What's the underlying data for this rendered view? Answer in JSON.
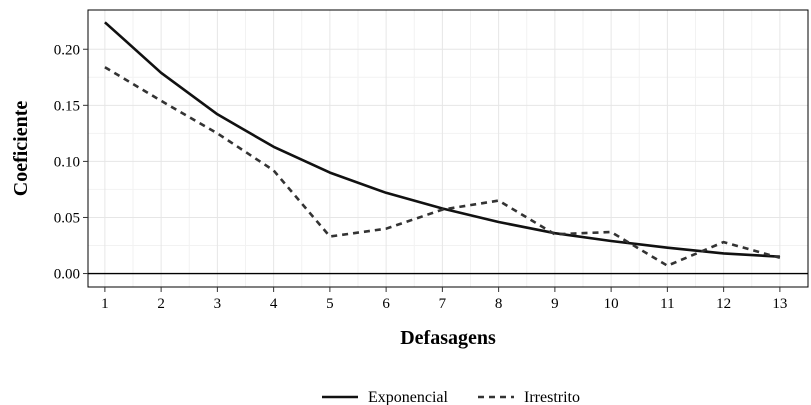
{
  "chart_data": {
    "type": "line",
    "xlabel": "Defasagens",
    "ylabel": "Coeficiente",
    "x": [
      1,
      2,
      3,
      4,
      5,
      6,
      7,
      8,
      9,
      10,
      11,
      12,
      13
    ],
    "xlim": [
      0.7,
      13.5
    ],
    "ylim": [
      -0.012,
      0.235
    ],
    "yticks": [
      0.0,
      0.05,
      0.1,
      0.15,
      0.2
    ],
    "ytick_labels": [
      "0.00",
      "0.05",
      "0.10",
      "0.15",
      "0.20"
    ],
    "xtick_labels": [
      "1",
      "2",
      "3",
      "4",
      "5",
      "6",
      "7",
      "8",
      "9",
      "10",
      "11",
      "12",
      "13"
    ],
    "grid": true,
    "legend_position": "bottom",
    "series": [
      {
        "name": "Exponencial",
        "style": "solid",
        "color": "#111111",
        "values": [
          0.224,
          0.179,
          0.142,
          0.113,
          0.09,
          0.072,
          0.058,
          0.046,
          0.036,
          0.029,
          0.023,
          0.018,
          0.015
        ]
      },
      {
        "name": "Irrestrito",
        "style": "dashed",
        "color": "#333333",
        "values": [
          0.184,
          0.154,
          0.125,
          0.092,
          0.033,
          0.04,
          0.057,
          0.065,
          0.035,
          0.037,
          0.007,
          0.028,
          0.014
        ]
      }
    ]
  }
}
